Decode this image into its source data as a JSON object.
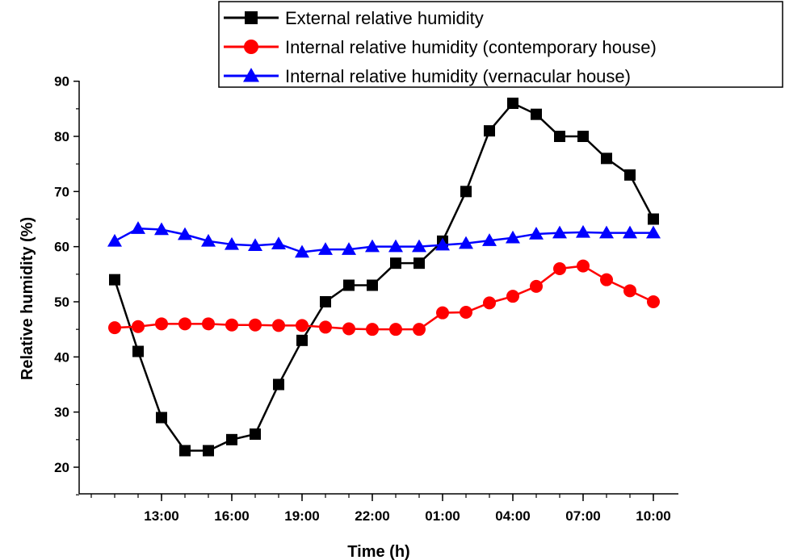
{
  "chart_data": {
    "type": "line",
    "xlabel": "Time (h)",
    "ylabel": "Relative humidity (%)",
    "ylim": [
      15,
      95
    ],
    "x_ticks": [
      "13:00",
      "16:00",
      "19:00",
      "22:00",
      "01:00",
      "04:00",
      "07:00",
      "10:00"
    ],
    "y_ticks": [
      20,
      30,
      40,
      50,
      60,
      70,
      80,
      90
    ],
    "x": [
      "11:00",
      "12:00",
      "13:00",
      "14:00",
      "15:00",
      "16:00",
      "17:00",
      "18:00",
      "19:00",
      "20:00",
      "21:00",
      "22:00",
      "23:00",
      "00:00",
      "01:00",
      "02:00",
      "03:00",
      "04:00",
      "05:00",
      "06:00",
      "07:00",
      "08:00",
      "09:00",
      "10:00"
    ],
    "legend_position": "top-right",
    "series": [
      {
        "name": "External relative humidity",
        "color": "#000000",
        "marker": "square",
        "values": [
          54,
          41,
          29,
          23,
          23,
          25,
          26,
          35,
          43,
          50,
          53,
          53,
          57,
          57,
          61,
          70,
          81,
          86,
          84,
          80,
          80,
          76,
          73,
          65
        ]
      },
      {
        "name": "Internal relative humidity (contemporary house)",
        "color": "#ff0000",
        "marker": "circle",
        "values": [
          45.3,
          45.5,
          46,
          46,
          46,
          45.8,
          45.8,
          45.7,
          45.7,
          45.4,
          45.1,
          45,
          45,
          45,
          48,
          48.1,
          49.8,
          51,
          52.8,
          56,
          56.5,
          54,
          52,
          50
        ]
      },
      {
        "name": "Internal relative humidity (vernacular house)",
        "color": "#0000ff",
        "marker": "triangle",
        "values": [
          61,
          63.3,
          63.1,
          62.2,
          61,
          60.4,
          60.2,
          60.5,
          59,
          59.5,
          59.5,
          60,
          60,
          60,
          60.3,
          60.6,
          61.1,
          61.6,
          62.3,
          62.5,
          62.6,
          62.5,
          62.5,
          62.5
        ]
      }
    ]
  }
}
